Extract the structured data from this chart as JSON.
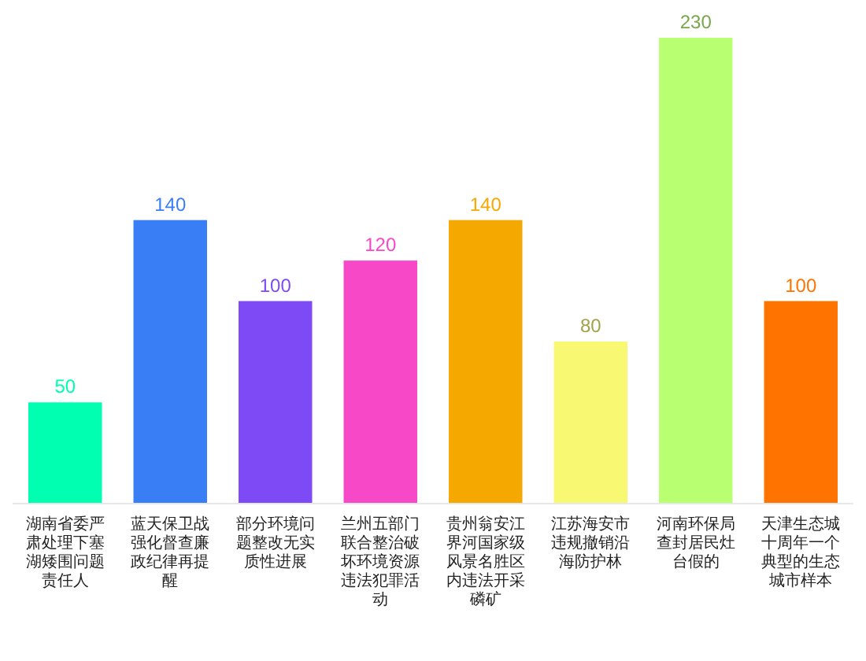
{
  "chart_data": {
    "type": "bar",
    "categories": [
      "湖南省委严肃处理下塞湖矮围问题责任人",
      "蓝天保卫战强化督查廉政纪律再提醒",
      "部分环境问题整改无实质性进展",
      "兰州五部门联合整治破坏环境资源违法犯罪活动",
      "贵州翁安江界河国家级风景名胜区内违法开采磷矿",
      "江苏海安市违规撤销沿海防护林",
      "河南环保局查封居民灶台假的",
      "天津生态城十周年一个典型的生态城市样本"
    ],
    "values": [
      50,
      140,
      100,
      120,
      140,
      80,
      230,
      100
    ],
    "colors": [
      "#00ffb0",
      "#3a7ef6",
      "#7d4af6",
      "#f748c8",
      "#f5a800",
      "#f9f872",
      "#b8ff72",
      "#ff7300"
    ],
    "data_labels": true
  }
}
